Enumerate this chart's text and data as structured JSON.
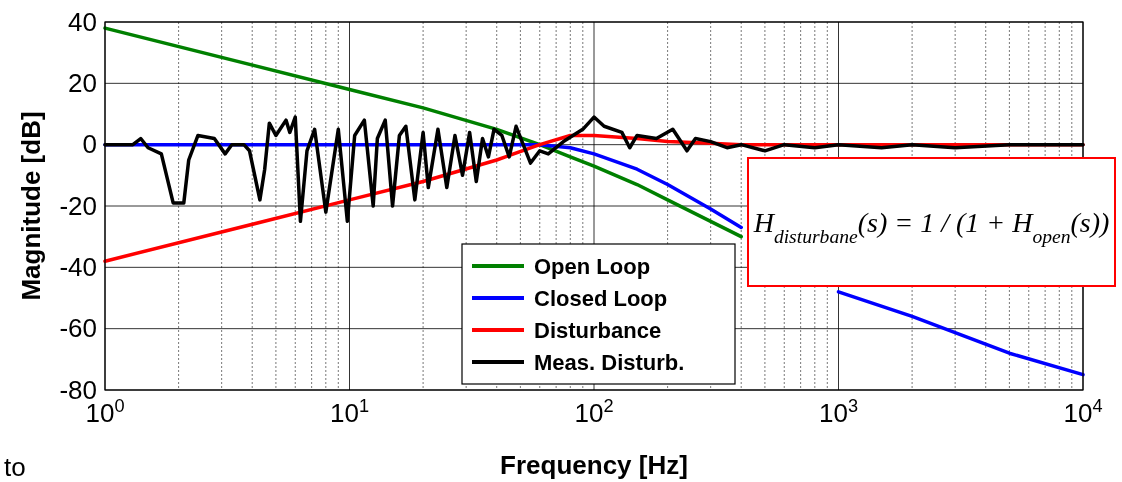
{
  "chart_data": {
    "type": "line",
    "xlabel": "Frequency [Hz]",
    "ylabel": "Magnitude [dB]",
    "log": "x",
    "grid": true,
    "legend": "bottom",
    "line_style": "solid",
    "marker": "none",
    "xlim": [
      1,
      10000
    ],
    "xticks": [
      {
        "value": 1,
        "label": "10$^{0}$"
      },
      {
        "value": 10,
        "label": "10$^{1}$"
      },
      {
        "value": 100,
        "label": "10$^{2}$"
      },
      {
        "value": 1000,
        "label": "10$^{3}$"
      },
      {
        "value": 10000,
        "label": "10$^{4}$"
      }
    ],
    "ylim": [
      -80,
      40
    ],
    "yticks": [
      -80,
      -60,
      -40,
      -20,
      0,
      20,
      40
    ],
    "annotations": [
      "H$_{disturbane}$(s) = 1 / (1 + H$_{open}$(s))",
      "to"
    ],
    "series": [
      {
        "name": "Open Loop",
        "color": "#008000",
        "x": [
          1,
          10,
          20,
          40,
          60,
          80,
          100,
          150,
          200,
          300,
          400
        ],
        "values": [
          38,
          18,
          12,
          5,
          0,
          -4,
          -7,
          -13,
          -18,
          -25,
          -30
        ]
      },
      {
        "name": "Closed Loop",
        "color": "#0000ff",
        "x": [
          1,
          10,
          40,
          60,
          80,
          100,
          150,
          200,
          300,
          400,
          600,
          1000,
          2000,
          5000,
          10000
        ],
        "values": [
          0,
          0,
          0,
          0,
          -1,
          -3,
          -8,
          -13,
          -21,
          -27,
          null,
          -48,
          -56,
          -68,
          -75
        ]
      },
      {
        "name": "Disturbance",
        "color": "#ff0000",
        "x": [
          1,
          10,
          20,
          40,
          60,
          80,
          100,
          150,
          200,
          300,
          400,
          1000,
          10000
        ],
        "values": [
          -38,
          -18,
          -12,
          -5,
          0,
          3,
          3,
          2,
          1,
          0.5,
          0,
          0,
          0
        ]
      },
      {
        "name": "Meas. Disturb.",
        "color": "#000000",
        "x": [
          1,
          1.3,
          1.4,
          1.5,
          1.7,
          1.9,
          2.1,
          2.2,
          2.4,
          2.8,
          3.1,
          3.3,
          3.7,
          3.9,
          4.3,
          4.5,
          4.7,
          5,
          5.5,
          5.7,
          6,
          6.3,
          6.7,
          7.2,
          8,
          9,
          9.8,
          10.5,
          11.5,
          12.5,
          13,
          14,
          15,
          16,
          17,
          18.5,
          20,
          21,
          23,
          25,
          27,
          29,
          31,
          33,
          35,
          37,
          39,
          42,
          45,
          48,
          55,
          60,
          65,
          75,
          90,
          100,
          110,
          130,
          140,
          150,
          180,
          210,
          240,
          260,
          300,
          350,
          400,
          500,
          600,
          800,
          1000,
          1500,
          2000,
          3000,
          5000,
          10000
        ],
        "values": [
          0,
          0,
          2,
          -1,
          -3,
          -19,
          -19,
          -5,
          3,
          2,
          -3,
          0,
          0,
          -2,
          -18,
          -8,
          7,
          3,
          8,
          4,
          9,
          -25,
          -2,
          5,
          -22,
          5,
          -25,
          3,
          8,
          -20,
          2,
          8,
          -20,
          3,
          6,
          -18,
          4,
          -14,
          5,
          -14,
          3,
          -10,
          4,
          -12,
          2,
          -4,
          5,
          3,
          -4,
          6,
          -6,
          -2,
          -3,
          1,
          5,
          9,
          6,
          4,
          -1,
          3,
          2,
          5,
          -2,
          2,
          1,
          -1,
          0,
          -2,
          0,
          -1,
          0,
          -1,
          0,
          -1,
          0,
          0
        ]
      }
    ]
  }
}
